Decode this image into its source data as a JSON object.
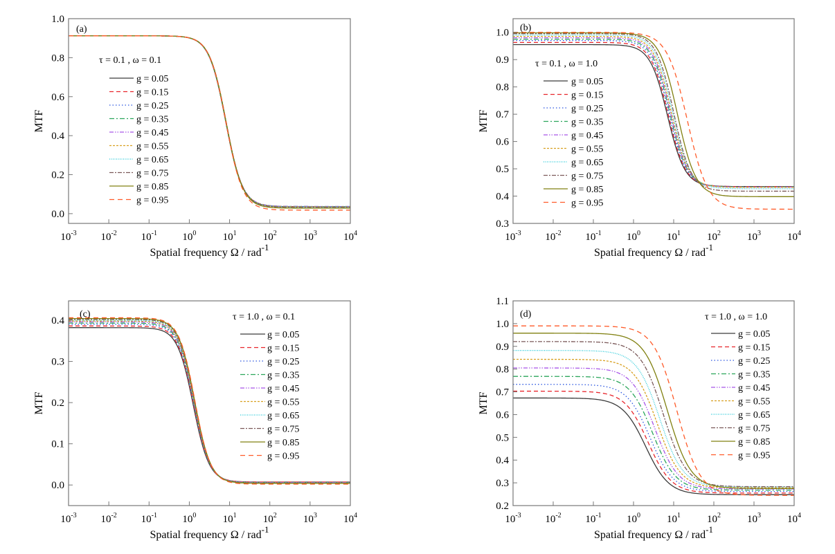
{
  "chart_data": [
    {
      "type": "line",
      "panel_label": "(a)",
      "param_label": "τ = 0.1 ,  ω = 0.1",
      "ylabel": "MTF",
      "xlabel": "Spatial frequency Ω / rad",
      "xlabel_sup": "-1",
      "xscale": "log",
      "xlim": [
        0.001,
        10000
      ],
      "ylim": [
        -0.05,
        1.0
      ],
      "xtick_exponents": [
        "-3",
        "-2",
        "-1",
        "0",
        "1",
        "2",
        "3",
        "4"
      ],
      "yticks": [
        "0.0",
        "0.2",
        "0.4",
        "0.6",
        "0.8",
        "1.0"
      ],
      "series": [
        {
          "name": "g = 0.05",
          "mtf_low_freq": 0.912,
          "mtf_high_freq": 0.035,
          "omega_mid": 8.0,
          "slope": 2.1
        },
        {
          "name": "g = 0.15",
          "mtf_low_freq": 0.912,
          "mtf_high_freq": 0.036,
          "omega_mid": 8.0,
          "slope": 2.1
        },
        {
          "name": "g = 0.25",
          "mtf_low_freq": 0.912,
          "mtf_high_freq": 0.036,
          "omega_mid": 8.0,
          "slope": 2.1
        },
        {
          "name": "g = 0.35",
          "mtf_low_freq": 0.912,
          "mtf_high_freq": 0.037,
          "omega_mid": 8.0,
          "slope": 2.1
        },
        {
          "name": "g = 0.45",
          "mtf_low_freq": 0.912,
          "mtf_high_freq": 0.037,
          "omega_mid": 8.1,
          "slope": 2.1
        },
        {
          "name": "g = 0.55",
          "mtf_low_freq": 0.912,
          "mtf_high_freq": 0.036,
          "omega_mid": 8.1,
          "slope": 2.1
        },
        {
          "name": "g = 0.65",
          "mtf_low_freq": 0.912,
          "mtf_high_freq": 0.035,
          "omega_mid": 8.1,
          "slope": 2.1
        },
        {
          "name": "g = 0.75",
          "mtf_low_freq": 0.912,
          "mtf_high_freq": 0.033,
          "omega_mid": 8.2,
          "slope": 2.1
        },
        {
          "name": "g = 0.85",
          "mtf_low_freq": 0.912,
          "mtf_high_freq": 0.028,
          "omega_mid": 8.2,
          "slope": 2.1
        },
        {
          "name": "g = 0.95",
          "mtf_low_freq": 0.912,
          "mtf_high_freq": 0.018,
          "omega_mid": 8.2,
          "slope": 2.1
        }
      ]
    },
    {
      "type": "line",
      "panel_label": "(b)",
      "param_label": "τ = 0.1 ,  ω = 1.0",
      "ylabel": "MTF",
      "xlabel": "Spatial frequency Ω / rad",
      "xlabel_sup": "-1",
      "xscale": "log",
      "xlim": [
        0.001,
        10000
      ],
      "ylim": [
        0.3,
        1.05
      ],
      "xtick_exponents": [
        "-3",
        "-2",
        "-1",
        "0",
        "1",
        "2",
        "3",
        "4"
      ],
      "yticks": [
        "0.3",
        "0.4",
        "0.5",
        "0.6",
        "0.7",
        "0.8",
        "0.9",
        "1.0"
      ],
      "series": [
        {
          "name": "g = 0.05",
          "mtf_low_freq": 0.955,
          "mtf_high_freq": 0.435,
          "omega_mid": 7.0,
          "slope": 2.0
        },
        {
          "name": "g = 0.15",
          "mtf_low_freq": 0.963,
          "mtf_high_freq": 0.435,
          "omega_mid": 7.3,
          "slope": 2.0
        },
        {
          "name": "g = 0.25",
          "mtf_low_freq": 0.97,
          "mtf_high_freq": 0.434,
          "omega_mid": 7.6,
          "slope": 2.0
        },
        {
          "name": "g = 0.35",
          "mtf_low_freq": 0.975,
          "mtf_high_freq": 0.434,
          "omega_mid": 8.0,
          "slope": 2.0
        },
        {
          "name": "g = 0.45",
          "mtf_low_freq": 0.98,
          "mtf_high_freq": 0.433,
          "omega_mid": 8.3,
          "slope": 2.0
        },
        {
          "name": "g = 0.55",
          "mtf_low_freq": 0.985,
          "mtf_high_freq": 0.432,
          "omega_mid": 8.7,
          "slope": 2.0
        },
        {
          "name": "g = 0.65",
          "mtf_low_freq": 0.99,
          "mtf_high_freq": 0.427,
          "omega_mid": 9.3,
          "slope": 2.0
        },
        {
          "name": "g = 0.75",
          "mtf_low_freq": 0.995,
          "mtf_high_freq": 0.418,
          "omega_mid": 10.0,
          "slope": 2.0
        },
        {
          "name": "g = 0.85",
          "mtf_low_freq": 0.998,
          "mtf_high_freq": 0.398,
          "omega_mid": 12.5,
          "slope": 1.9
        },
        {
          "name": "g = 0.95",
          "mtf_low_freq": 1.0,
          "mtf_high_freq": 0.352,
          "omega_mid": 22.0,
          "slope": 1.7
        }
      ]
    },
    {
      "type": "line",
      "panel_label": "(c)",
      "param_label": "τ = 1.0 ,  ω = 0.1",
      "ylabel": "MTF",
      "xlabel": "Spatial frequency Ω / rad",
      "xlabel_sup": "-1",
      "xscale": "log",
      "xlim": [
        0.001,
        10000
      ],
      "ylim": [
        -0.05,
        0.447
      ],
      "xtick_exponents": [
        "-3",
        "-2",
        "-1",
        "0",
        "1",
        "2",
        "3",
        "4"
      ],
      "yticks": [
        "0.0",
        "0.1",
        "0.2",
        "0.3",
        "0.4"
      ],
      "series": [
        {
          "name": "g = 0.05",
          "mtf_low_freq": 0.382,
          "mtf_high_freq": 0.007,
          "omega_mid": 1.25,
          "slope": 2.2
        },
        {
          "name": "g = 0.15",
          "mtf_low_freq": 0.386,
          "mtf_high_freq": 0.007,
          "omega_mid": 1.27,
          "slope": 2.2
        },
        {
          "name": "g = 0.25",
          "mtf_low_freq": 0.39,
          "mtf_high_freq": 0.006,
          "omega_mid": 1.28,
          "slope": 2.2
        },
        {
          "name": "g = 0.35",
          "mtf_low_freq": 0.393,
          "mtf_high_freq": 0.006,
          "omega_mid": 1.3,
          "slope": 2.2
        },
        {
          "name": "g = 0.45",
          "mtf_low_freq": 0.396,
          "mtf_high_freq": 0.006,
          "omega_mid": 1.31,
          "slope": 2.2
        },
        {
          "name": "g = 0.55",
          "mtf_low_freq": 0.398,
          "mtf_high_freq": 0.005,
          "omega_mid": 1.32,
          "slope": 2.2
        },
        {
          "name": "g = 0.65",
          "mtf_low_freq": 0.4,
          "mtf_high_freq": 0.005,
          "omega_mid": 1.33,
          "slope": 2.2
        },
        {
          "name": "g = 0.75",
          "mtf_low_freq": 0.402,
          "mtf_high_freq": 0.004,
          "omega_mid": 1.34,
          "slope": 2.2
        },
        {
          "name": "g = 0.85",
          "mtf_low_freq": 0.404,
          "mtf_high_freq": 0.004,
          "omega_mid": 1.36,
          "slope": 2.2
        },
        {
          "name": "g = 0.95",
          "mtf_low_freq": 0.406,
          "mtf_high_freq": 0.002,
          "omega_mid": 1.38,
          "slope": 2.2
        }
      ]
    },
    {
      "type": "line",
      "panel_label": "(d)",
      "param_label": "τ = 1.0 ,  ω = 1.0",
      "ylabel": "MTF",
      "xlabel": "Spatial frequency Ω / rad",
      "xlabel_sup": "-1",
      "xscale": "log",
      "xlim": [
        0.001,
        10000
      ],
      "ylim": [
        0.2,
        1.1
      ],
      "xtick_exponents": [
        "-3",
        "-2",
        "-1",
        "0",
        "1",
        "2",
        "3",
        "4"
      ],
      "yticks": [
        "0.2",
        "0.3",
        "0.4",
        "0.5",
        "0.6",
        "0.7",
        "0.8",
        "0.9",
        "1.0",
        "1.1"
      ],
      "series": [
        {
          "name": "g = 0.05",
          "mtf_low_freq": 0.673,
          "mtf_high_freq": 0.248,
          "omega_mid": 2.0,
          "slope": 1.5
        },
        {
          "name": "g = 0.15",
          "mtf_low_freq": 0.703,
          "mtf_high_freq": 0.255,
          "omega_mid": 2.3,
          "slope": 1.5
        },
        {
          "name": "g = 0.25",
          "mtf_low_freq": 0.733,
          "mtf_high_freq": 0.262,
          "omega_mid": 2.6,
          "slope": 1.5
        },
        {
          "name": "g = 0.35",
          "mtf_low_freq": 0.768,
          "mtf_high_freq": 0.268,
          "omega_mid": 3.0,
          "slope": 1.5
        },
        {
          "name": "g = 0.45",
          "mtf_low_freq": 0.805,
          "mtf_high_freq": 0.273,
          "omega_mid": 3.4,
          "slope": 1.5
        },
        {
          "name": "g = 0.55",
          "mtf_low_freq": 0.843,
          "mtf_high_freq": 0.278,
          "omega_mid": 3.9,
          "slope": 1.5
        },
        {
          "name": "g = 0.65",
          "mtf_low_freq": 0.882,
          "mtf_high_freq": 0.282,
          "omega_mid": 4.5,
          "slope": 1.5
        },
        {
          "name": "g = 0.75",
          "mtf_low_freq": 0.921,
          "mtf_high_freq": 0.283,
          "omega_mid": 5.5,
          "slope": 1.5
        },
        {
          "name": "g = 0.85",
          "mtf_low_freq": 0.958,
          "mtf_high_freq": 0.275,
          "omega_mid": 7.0,
          "slope": 1.5
        },
        {
          "name": "g = 0.95",
          "mtf_low_freq": 0.99,
          "mtf_high_freq": 0.245,
          "omega_mid": 12.0,
          "slope": 1.5
        }
      ]
    }
  ],
  "series_colors": [
    "#3a3a3a",
    "#e8242a",
    "#2a55e0",
    "#2aa55a",
    "#a855e8",
    "#d8a020",
    "#20c8d8",
    "#7a5858",
    "#808010",
    "#ff5a28"
  ]
}
